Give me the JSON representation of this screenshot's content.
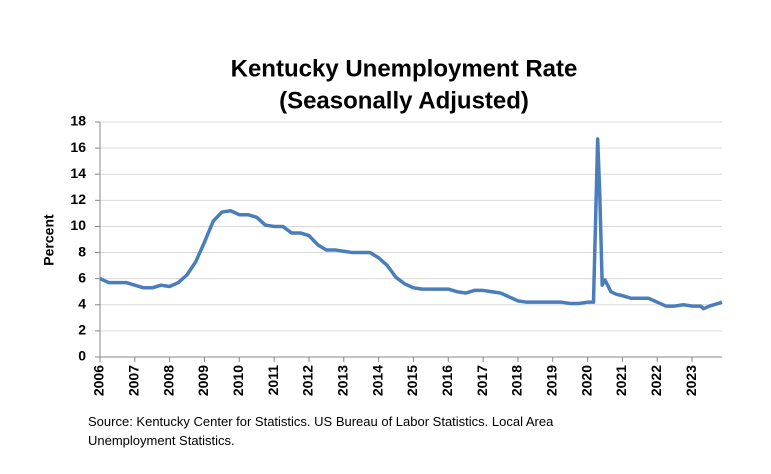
{
  "chart_data": {
    "type": "line",
    "title": [
      "Kentucky Unemployment Rate",
      "(Seasonally Adjusted)"
    ],
    "y_label": "Percent",
    "source": "Source: Kentucky Center for Statistics. US Bureau of Labor Statistics. Local Area Unemployment Statistics.",
    "color": "#4a7ebb",
    "grid": true,
    "xlim": [
      2006,
      2023.86
    ],
    "xticks": [
      2006,
      2007,
      2008,
      2009,
      2010,
      2011,
      2012,
      2013,
      2014,
      2015,
      2016,
      2017,
      2018,
      2019,
      2020,
      2021,
      2022,
      2023
    ],
    "ylim": [
      0,
      18
    ],
    "yticks": [
      0,
      2,
      4,
      6,
      8,
      10,
      12,
      14,
      16,
      18
    ],
    "x": [
      2006,
      2006.25,
      2006.5,
      2006.75,
      2007,
      2007.25,
      2007.5,
      2007.75,
      2008,
      2008.25,
      2008.5,
      2008.75,
      2009,
      2009.25,
      2009.5,
      2009.75,
      2010,
      2010.25,
      2010.5,
      2010.75,
      2011,
      2011.25,
      2011.5,
      2011.75,
      2012,
      2012.25,
      2012.5,
      2012.75,
      2013,
      2013.25,
      2013.5,
      2013.75,
      2014,
      2014.25,
      2014.5,
      2014.75,
      2015,
      2015.25,
      2015.5,
      2015.75,
      2016,
      2016.25,
      2016.5,
      2016.75,
      2017,
      2017.25,
      2017.5,
      2017.75,
      2018,
      2018.25,
      2018.5,
      2018.75,
      2019,
      2019.25,
      2019.5,
      2019.75,
      2020,
      2020.17,
      2020.29,
      2020.35,
      2020.42,
      2020.5,
      2020.67,
      2020.83,
      2021,
      2021.25,
      2021.5,
      2021.75,
      2022,
      2022.25,
      2022.5,
      2022.75,
      2023,
      2023.25,
      2023.33,
      2023.5,
      2023.75,
      2023.86
    ],
    "values": [
      6.0,
      5.7,
      5.7,
      5.7,
      5.5,
      5.3,
      5.3,
      5.5,
      5.4,
      5.7,
      6.3,
      7.3,
      8.8,
      10.4,
      11.1,
      11.2,
      10.9,
      10.9,
      10.7,
      10.1,
      10.0,
      10.0,
      9.5,
      9.5,
      9.3,
      8.6,
      8.2,
      8.2,
      8.1,
      8.0,
      8.0,
      8.0,
      7.6,
      7.0,
      6.1,
      5.6,
      5.3,
      5.2,
      5.2,
      5.2,
      5.2,
      5.0,
      4.9,
      5.1,
      5.1,
      5.0,
      4.9,
      4.6,
      4.3,
      4.2,
      4.2,
      4.2,
      4.2,
      4.2,
      4.1,
      4.1,
      4.2,
      4.2,
      16.7,
      12.5,
      5.5,
      5.9,
      5.0,
      4.8,
      4.7,
      4.5,
      4.5,
      4.5,
      4.2,
      3.9,
      3.9,
      4.0,
      3.9,
      3.9,
      3.7,
      3.9,
      4.1,
      4.2
    ]
  }
}
